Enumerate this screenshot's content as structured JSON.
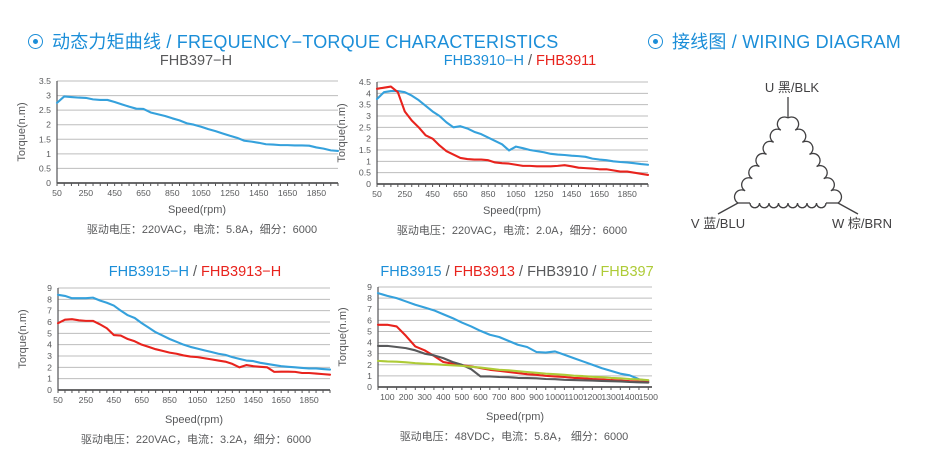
{
  "headers": {
    "left": "动态力矩曲线 / FREQUENCY−TORQUE CHARACTERISTICS",
    "right": "接线图 / WIRING DIAGRAM"
  },
  "colors": {
    "header_blue": "#1b8ed8",
    "curve_blue": "#35a1dc",
    "curve_red": "#e8231d",
    "curve_gray": "#58595b",
    "curve_green": "#aecb37",
    "grid": "#bdbdbd",
    "axis": "#545456",
    "text": "#58595b"
  },
  "chart_data": [
    {
      "type": "line",
      "title_parts": [
        {
          "text": "FHB397−H",
          "color": "#58595b"
        }
      ],
      "xlabel": "Speed(rpm)",
      "ylabel": "Torque(n.m)",
      "caption": "驱动电压：220VAC，电流：5.8A，细分：6000",
      "xlim": [
        50,
        2000
      ],
      "ylim": [
        0,
        3.5
      ],
      "ytick": 0.5,
      "xticks": [
        50,
        250,
        450,
        650,
        850,
        1050,
        1250,
        1450,
        1650,
        1850
      ],
      "xminor": 50,
      "series": [
        {
          "name": "FHB397-H",
          "color": "#35a1dc",
          "x": [
            50,
            100,
            150,
            200,
            250,
            300,
            350,
            400,
            450,
            500,
            550,
            600,
            650,
            700,
            750,
            800,
            850,
            900,
            950,
            1000,
            1050,
            1100,
            1150,
            1200,
            1250,
            1300,
            1350,
            1400,
            1450,
            1500,
            1550,
            1600,
            1650,
            1700,
            1750,
            1800,
            1850,
            1900,
            1950,
            2000
          ],
          "y": [
            2.75,
            2.97,
            2.95,
            2.93,
            2.92,
            2.87,
            2.85,
            2.85,
            2.78,
            2.7,
            2.62,
            2.55,
            2.54,
            2.42,
            2.36,
            2.3,
            2.22,
            2.15,
            2.05,
            2.0,
            1.93,
            1.85,
            1.78,
            1.7,
            1.62,
            1.55,
            1.45,
            1.42,
            1.38,
            1.33,
            1.32,
            1.3,
            1.3,
            1.29,
            1.29,
            1.28,
            1.22,
            1.18,
            1.12,
            1.1
          ]
        }
      ]
    },
    {
      "type": "line",
      "title_parts": [
        {
          "text": "FHB3910−H",
          "color": "#1b8ed8"
        },
        {
          "text": "FHB3911",
          "color": "#e8231d"
        }
      ],
      "xlabel": "Speed(rpm)",
      "ylabel": "Torque(n.m)",
      "caption": "驱动电压：220VAC，电流：2.0A，细分：6000",
      "xlim": [
        50,
        2000
      ],
      "ylim": [
        0,
        4.5
      ],
      "ytick": 0.5,
      "xticks": [
        50,
        250,
        450,
        650,
        850,
        1050,
        1250,
        1450,
        1650,
        1850
      ],
      "xminor": 50,
      "series": [
        {
          "name": "FHB3910-H",
          "color": "#35a1dc",
          "x": [
            50,
            100,
            150,
            200,
            250,
            300,
            350,
            400,
            450,
            500,
            550,
            600,
            650,
            700,
            750,
            800,
            850,
            900,
            950,
            1000,
            1050,
            1100,
            1150,
            1200,
            1250,
            1300,
            1350,
            1400,
            1450,
            1500,
            1550,
            1600,
            1650,
            1700,
            1750,
            1800,
            1850,
            1900,
            1950,
            2000
          ],
          "y": [
            3.75,
            4.05,
            4.1,
            4.1,
            4.05,
            3.9,
            3.7,
            3.45,
            3.2,
            3.0,
            2.72,
            2.5,
            2.55,
            2.45,
            2.3,
            2.2,
            2.05,
            1.9,
            1.75,
            1.48,
            1.65,
            1.58,
            1.5,
            1.45,
            1.4,
            1.33,
            1.3,
            1.28,
            1.25,
            1.23,
            1.2,
            1.12,
            1.08,
            1.05,
            1.0,
            0.97,
            0.95,
            0.92,
            0.88,
            0.85
          ]
        },
        {
          "name": "FHB3911",
          "color": "#e8231d",
          "x": [
            50,
            100,
            150,
            200,
            250,
            300,
            350,
            400,
            450,
            500,
            550,
            600,
            650,
            700,
            750,
            800,
            850,
            900,
            950,
            1000,
            1050,
            1100,
            1150,
            1200,
            1250,
            1300,
            1350,
            1400,
            1450,
            1500,
            1550,
            1600,
            1650,
            1700,
            1750,
            1800,
            1850,
            1900,
            1950,
            2000
          ],
          "y": [
            4.2,
            4.25,
            4.3,
            4.05,
            3.2,
            2.8,
            2.5,
            2.15,
            2.0,
            1.7,
            1.45,
            1.3,
            1.15,
            1.1,
            1.08,
            1.08,
            1.05,
            0.95,
            0.92,
            0.9,
            0.85,
            0.8,
            0.8,
            0.78,
            0.78,
            0.78,
            0.8,
            0.83,
            0.78,
            0.72,
            0.7,
            0.68,
            0.65,
            0.65,
            0.6,
            0.55,
            0.55,
            0.5,
            0.45,
            0.4
          ]
        }
      ]
    },
    {
      "type": "line",
      "title_parts": [
        {
          "text": "FHB3915−H",
          "color": "#1b8ed8"
        },
        {
          "text": "FHB3913−H",
          "color": "#e8231d"
        }
      ],
      "xlabel": "Speed(rpm)",
      "ylabel": "Torque(n.m)",
      "caption": "驱动电压：220VAC，电流：3.2A，细分：6000",
      "xlim": [
        50,
        2000
      ],
      "ylim": [
        0,
        9
      ],
      "ytick": 1,
      "xticks": [
        50,
        250,
        450,
        650,
        850,
        1050,
        1250,
        1450,
        1650,
        1850
      ],
      "xminor": 50,
      "series": [
        {
          "name": "FHB3915-H",
          "color": "#35a1dc",
          "x": [
            50,
            100,
            150,
            200,
            250,
            300,
            350,
            400,
            450,
            500,
            550,
            600,
            650,
            700,
            750,
            800,
            850,
            900,
            950,
            1000,
            1050,
            1100,
            1150,
            1200,
            1250,
            1300,
            1350,
            1400,
            1450,
            1500,
            1550,
            1600,
            1650,
            1700,
            1750,
            1800,
            1850,
            1900,
            1950,
            2000
          ],
          "y": [
            8.4,
            8.3,
            8.1,
            8.1,
            8.1,
            8.15,
            7.9,
            7.7,
            7.45,
            7.0,
            6.6,
            6.35,
            5.9,
            5.5,
            5.1,
            4.8,
            4.5,
            4.25,
            4.0,
            3.8,
            3.65,
            3.5,
            3.35,
            3.2,
            3.1,
            2.9,
            2.75,
            2.6,
            2.55,
            2.4,
            2.3,
            2.2,
            2.1,
            2.05,
            2.0,
            1.95,
            1.9,
            1.9,
            1.85,
            1.8
          ]
        },
        {
          "name": "FHB3913-H",
          "color": "#e8231d",
          "x": [
            50,
            100,
            150,
            200,
            250,
            300,
            350,
            400,
            450,
            500,
            550,
            600,
            650,
            700,
            750,
            800,
            850,
            900,
            950,
            1000,
            1050,
            1100,
            1150,
            1200,
            1250,
            1300,
            1350,
            1400,
            1450,
            1500,
            1550,
            1600,
            1650,
            1700,
            1750,
            1800,
            1850,
            1900,
            1950,
            2000
          ],
          "y": [
            5.9,
            6.2,
            6.25,
            6.15,
            6.1,
            6.1,
            5.8,
            5.45,
            4.85,
            4.8,
            4.5,
            4.3,
            4.0,
            3.8,
            3.6,
            3.45,
            3.3,
            3.2,
            3.05,
            2.95,
            2.9,
            2.8,
            2.7,
            2.6,
            2.5,
            2.3,
            2.0,
            2.2,
            2.1,
            2.05,
            2.0,
            1.6,
            1.62,
            1.62,
            1.6,
            1.5,
            1.5,
            1.45,
            1.4,
            1.35
          ]
        }
      ]
    },
    {
      "type": "line",
      "title_parts": [
        {
          "text": "FHB3915",
          "color": "#1b8ed8"
        },
        {
          "text": "FHB3913",
          "color": "#e8231d"
        },
        {
          "text": "FHB3910",
          "color": "#58595b"
        },
        {
          "text": "FHB397",
          "color": "#aecb37"
        }
      ],
      "xlabel": "Speed(rpm)",
      "ylabel": "Torque(n.m)",
      "caption": "驱动电压：48VDC，电流：5.8A， 细分：6000",
      "xlim": [
        50,
        1520
      ],
      "ylim": [
        0,
        9
      ],
      "ytick": 1,
      "xticks": [
        100,
        200,
        300,
        400,
        500,
        600,
        700,
        800,
        900,
        1000,
        1100,
        1200,
        1300,
        1400,
        1500
      ],
      "xminor": 50,
      "series": [
        {
          "name": "FHB3915",
          "color": "#35a1dc",
          "x": [
            50,
            100,
            150,
            200,
            250,
            300,
            350,
            400,
            450,
            500,
            550,
            600,
            650,
            700,
            750,
            800,
            850,
            900,
            950,
            1000,
            1050,
            1100,
            1150,
            1200,
            1250,
            1300,
            1350,
            1400,
            1450,
            1500
          ],
          "y": [
            8.45,
            8.2,
            8.0,
            7.7,
            7.4,
            7.15,
            6.9,
            6.55,
            6.2,
            5.8,
            5.45,
            5.05,
            4.7,
            4.5,
            4.15,
            3.8,
            3.6,
            3.15,
            3.1,
            3.2,
            2.9,
            2.6,
            2.3,
            2.0,
            1.7,
            1.45,
            1.2,
            1.05,
            0.7,
            0.55
          ]
        },
        {
          "name": "FHB3913",
          "color": "#e8231d",
          "x": [
            50,
            100,
            150,
            200,
            250,
            300,
            350,
            400,
            450,
            500,
            550,
            600,
            650,
            700,
            750,
            800,
            850,
            900,
            950,
            1000,
            1050,
            1100,
            1150,
            1200,
            1250,
            1300,
            1350,
            1400,
            1450,
            1500
          ],
          "y": [
            5.6,
            5.6,
            5.45,
            4.6,
            3.65,
            3.3,
            2.8,
            2.25,
            2.1,
            1.95,
            1.85,
            1.7,
            1.55,
            1.45,
            1.35,
            1.25,
            1.15,
            1.1,
            1.0,
            0.95,
            0.9,
            0.82,
            0.78,
            0.72,
            0.68,
            0.62,
            0.58,
            0.52,
            0.48,
            0.45
          ]
        },
        {
          "name": "FHB3910",
          "color": "#58595b",
          "x": [
            50,
            100,
            150,
            200,
            250,
            300,
            350,
            400,
            450,
            500,
            550,
            600,
            650,
            700,
            750,
            800,
            850,
            900,
            950,
            1000,
            1050,
            1100,
            1150,
            1200,
            1250,
            1300,
            1350,
            1400,
            1450,
            1500
          ],
          "y": [
            3.7,
            3.7,
            3.6,
            3.5,
            3.3,
            3.0,
            2.85,
            2.6,
            2.25,
            2.0,
            1.6,
            0.95,
            0.95,
            0.9,
            0.88,
            0.82,
            0.8,
            0.78,
            0.72,
            0.7,
            0.65,
            0.62,
            0.6,
            0.58,
            0.55,
            0.52,
            0.5,
            0.45,
            0.42,
            0.4
          ]
        },
        {
          "name": "FHB397",
          "color": "#aecb37",
          "x": [
            50,
            100,
            150,
            200,
            250,
            300,
            350,
            400,
            450,
            500,
            550,
            600,
            650,
            700,
            750,
            800,
            850,
            900,
            950,
            1000,
            1050,
            1100,
            1150,
            1200,
            1250,
            1300,
            1350,
            1400,
            1450,
            1500
          ],
          "y": [
            2.35,
            2.3,
            2.28,
            2.22,
            2.15,
            2.1,
            2.05,
            2.0,
            1.95,
            1.9,
            1.82,
            1.75,
            1.65,
            1.55,
            1.5,
            1.42,
            1.35,
            1.28,
            1.2,
            1.15,
            1.1,
            1.02,
            0.98,
            0.92,
            0.88,
            0.82,
            0.78,
            0.72,
            0.68,
            0.62
          ]
        }
      ]
    }
  ],
  "wiring": {
    "terminals": [
      {
        "label": "U 黑/BLK"
      },
      {
        "label": "V 蓝/BLU"
      },
      {
        "label": "W 棕/BRN"
      }
    ]
  }
}
